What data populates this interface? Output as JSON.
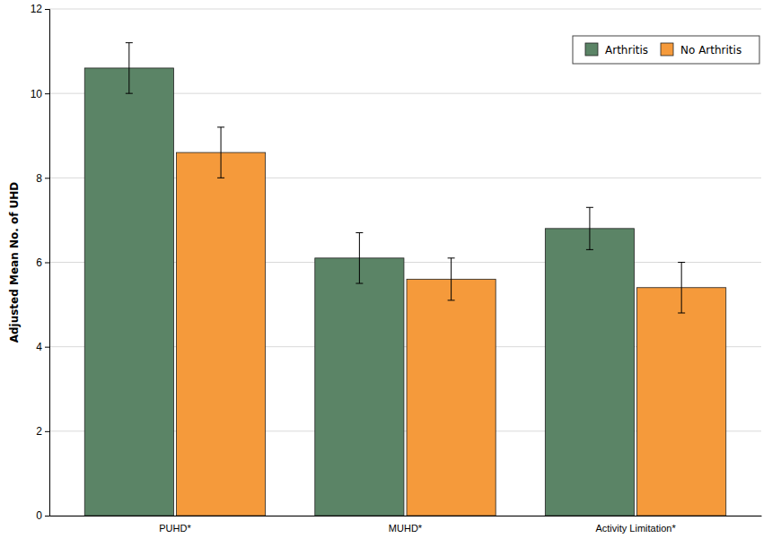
{
  "chart_data": {
    "type": "bar",
    "categories": [
      "PUHD*",
      "MUHD*",
      "Activity Limitation*"
    ],
    "series": [
      {
        "name": "Arthritis",
        "color": "#5b8466",
        "values": [
          10.6,
          6.1,
          6.8
        ],
        "errors": [
          0.6,
          0.6,
          0.5
        ]
      },
      {
        "name": "No Arthritis",
        "color": "#f59a3b",
        "values": [
          8.6,
          5.6,
          5.4
        ],
        "errors": [
          0.6,
          0.5,
          0.6
        ]
      }
    ],
    "y_label": "Adjusted Mean No. of UHD",
    "ylim": [
      0,
      12
    ],
    "yticks": [
      0,
      2,
      4,
      6,
      8,
      10,
      12
    ],
    "grid": true,
    "legend": "top-right"
  }
}
